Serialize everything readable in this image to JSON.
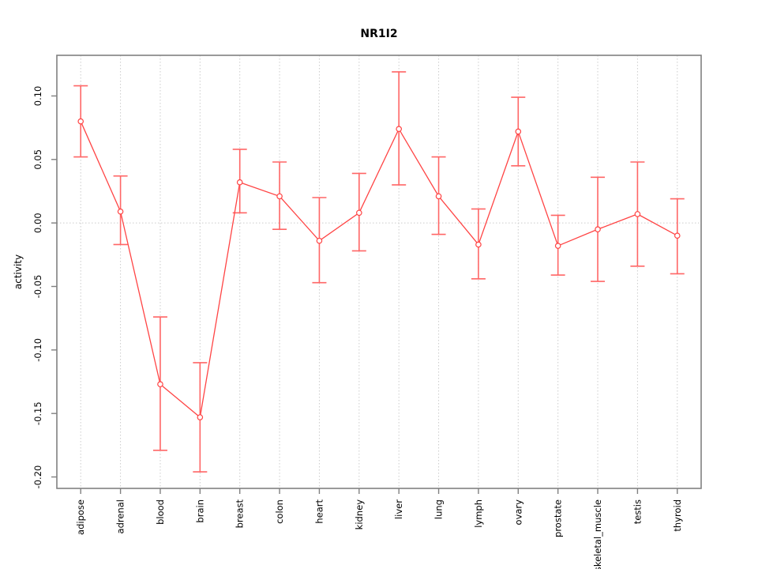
{
  "chart_data": {
    "type": "line",
    "title": "NR1I2",
    "xlabel": "",
    "ylabel": "activity",
    "legend": "none",
    "grid": "dotted vertical gridline at each category; dotted horizontal line at y=0",
    "categories": [
      "adipose",
      "adrenal",
      "blood",
      "brain",
      "breast",
      "colon",
      "heart",
      "kidney",
      "liver",
      "lung",
      "lymph",
      "ovary",
      "prostate",
      "skeletal_muscle",
      "testis",
      "thyroid"
    ],
    "series": [
      {
        "name": "activity",
        "values": [
          0.08,
          0.009,
          -0.127,
          -0.153,
          0.032,
          0.021,
          -0.014,
          0.008,
          0.074,
          0.021,
          -0.017,
          0.072,
          -0.018,
          -0.005,
          0.007,
          -0.01
        ],
        "error_low": [
          0.052,
          -0.017,
          -0.179,
          -0.196,
          0.008,
          -0.005,
          -0.047,
          -0.022,
          0.03,
          -0.009,
          -0.044,
          0.045,
          -0.041,
          -0.046,
          -0.034,
          -0.04
        ],
        "error_high": [
          0.108,
          0.037,
          -0.074,
          -0.11,
          0.058,
          0.048,
          0.02,
          0.039,
          0.119,
          0.052,
          0.011,
          0.099,
          0.006,
          0.036,
          0.048,
          0.019
        ]
      }
    ],
    "yticks": [
      0.1,
      0.05,
      0.0,
      -0.05,
      -0.1,
      -0.15,
      -0.2
    ],
    "ytick_labels": [
      "0.10",
      "0.05",
      "0.00",
      "-0.05",
      "-0.10",
      "-0.15",
      "-0.20"
    ],
    "ylim": [
      -0.209,
      0.132
    ],
    "xlim": [
      0.4,
      16.6
    ],
    "marker": "open-circle"
  },
  "colors": {
    "series_line": "#ff4444",
    "error_bar": "#ff6666",
    "point_fill": "#ffffff",
    "grid_line": "#cccccc",
    "box_border": "#808080",
    "text": "#000000",
    "background": "#ffffff"
  }
}
